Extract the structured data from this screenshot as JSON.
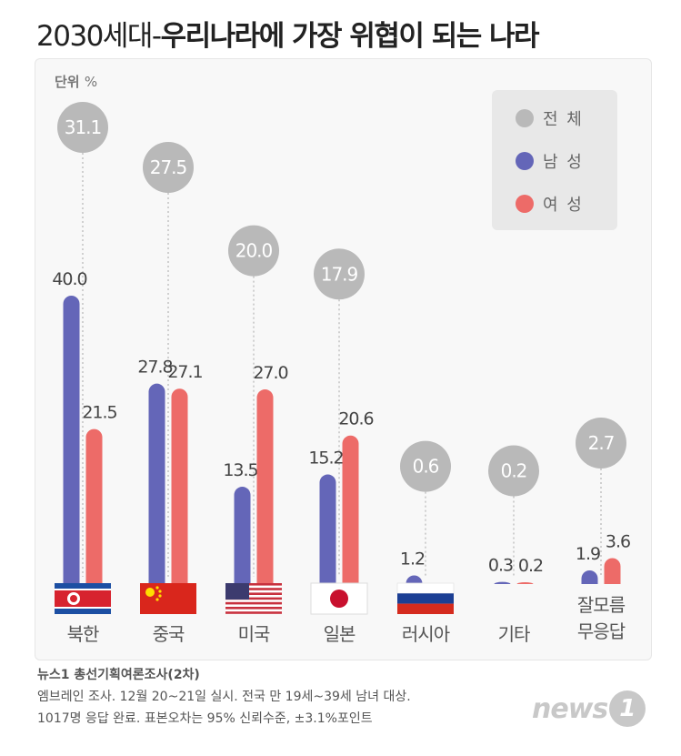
{
  "title": {
    "light": "2030세대-",
    "bold": "우리나라에 가장 위협이 되는 나라"
  },
  "unit": {
    "label": "단위",
    "symbol": "%"
  },
  "legend": [
    {
      "label": "전 체",
      "color": "#b9b9b9"
    },
    {
      "label": "남 성",
      "color": "#6466b8"
    },
    {
      "label": "여 성",
      "color": "#ed6b68"
    }
  ],
  "chart_data": {
    "type": "bar",
    "categories": [
      "북한",
      "중국",
      "미국",
      "일본",
      "러시아",
      "기타",
      "잘모름\n무응답"
    ],
    "series": [
      {
        "name": "전 체",
        "values": [
          31.1,
          27.5,
          20.0,
          17.9,
          0.6,
          0.2,
          2.7
        ]
      },
      {
        "name": "남 성",
        "values": [
          40.0,
          27.8,
          13.5,
          15.2,
          1.2,
          0.3,
          1.9
        ]
      },
      {
        "name": "여 성",
        "values": [
          21.5,
          27.1,
          27.0,
          20.6,
          0.0,
          0.2,
          3.6
        ]
      }
    ],
    "value_labels": {
      "전 체": [
        "31.1",
        "27.5",
        "20.0",
        "17.9",
        "0.6",
        "0.2",
        "2.7"
      ],
      "남 성": [
        "40.0",
        "27.8",
        "13.5",
        "15.2",
        "1.2",
        "0.3",
        "1.9"
      ],
      "여 성": [
        "21.5",
        "27.1",
        "27.0",
        "20.6",
        "",
        "0.2",
        "3.6"
      ]
    },
    "flags": [
      "north-korea-flag",
      "china-flag",
      "usa-flag",
      "japan-flag",
      "russia-flag",
      "",
      ""
    ],
    "ylim": [
      0,
      40
    ]
  },
  "source": {
    "title": "뉴스1 총선기획여론조사(2차)",
    "line1": "엠브레인 조사. 12월 20~21일 실시. 전국 만 19세~39세 남녀 대상.",
    "line2": "1017명 응답 완료. 표본오차는 95% 신뢰수준, ±3.1%포인트"
  },
  "logo": {
    "word": "news",
    "badge": "1"
  }
}
